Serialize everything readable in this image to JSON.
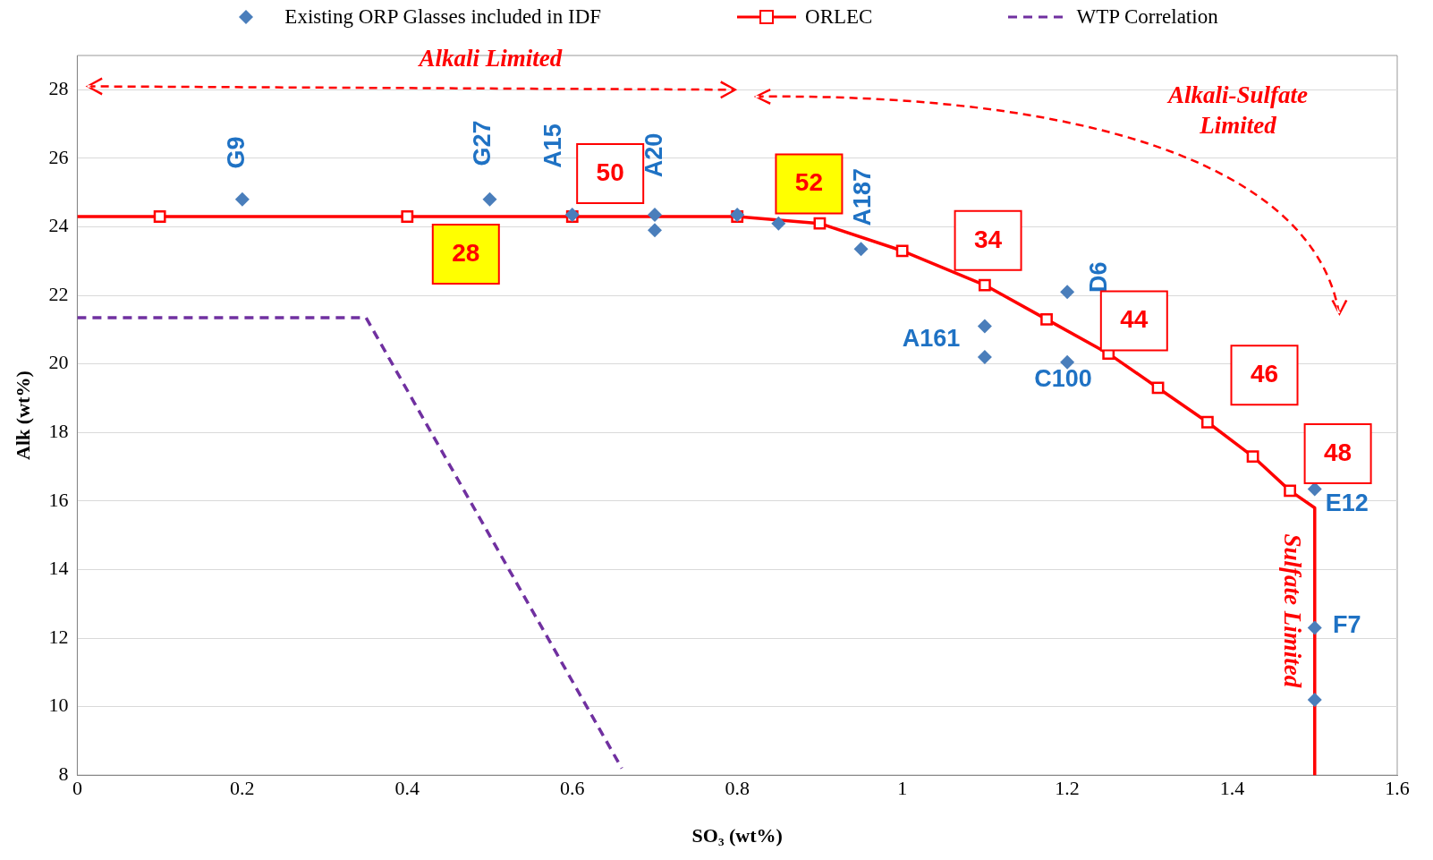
{
  "chart_data": {
    "type": "scatter",
    "xlabel": "SO₃ (wt%)",
    "ylabel": "Alk (wt%)",
    "xlim": [
      0,
      1.6
    ],
    "xticks": [
      0,
      0.2,
      0.4,
      0.6,
      0.8,
      1,
      1.2,
      1.4,
      1.6
    ],
    "ylim": [
      8,
      29
    ],
    "yticks": [
      8,
      10,
      12,
      14,
      16,
      18,
      20,
      22,
      24,
      26,
      28
    ],
    "grid": "y",
    "legend": "top",
    "series": [
      {
        "name": "Existing ORP Glasses included in IDF",
        "type": "scatter",
        "marker": "diamond",
        "color": "#4a7ebb",
        "x": [
          0.2,
          0.5,
          0.6,
          0.7,
          0.7,
          0.8,
          0.85,
          0.95,
          1.1,
          1.1,
          1.2,
          1.2,
          1.5,
          1.5,
          1.5
        ],
        "values": [
          24.8,
          24.8,
          24.35,
          24.35,
          23.9,
          24.35,
          24.1,
          23.35,
          21.1,
          20.2,
          22.1,
          20.05,
          16.35,
          12.3,
          10.2
        ]
      },
      {
        "name": "ORLEC",
        "type": "line",
        "marker": "square",
        "line_style": "solid",
        "color": "#ff0000",
        "x": [
          0.1,
          0.4,
          0.6,
          0.8,
          0.9,
          1.0,
          1.1,
          1.175,
          1.25,
          1.31,
          1.37,
          1.425,
          1.47
        ],
        "values": [
          24.3,
          24.3,
          24.3,
          24.3,
          24.1,
          23.3,
          22.3,
          21.3,
          20.3,
          19.3,
          18.3,
          17.3,
          16.3
        ]
      },
      {
        "type": "line",
        "marker": "none",
        "line_style": "solid",
        "color": "#ff0000",
        "x": [
          0,
          0.1
        ],
        "values": [
          24.3,
          24.3
        ]
      },
      {
        "type": "line",
        "marker": "none",
        "line_style": "solid",
        "color": "#ff0000",
        "x": [
          1.47,
          1.5,
          1.5
        ],
        "values": [
          16.3,
          15.8,
          8
        ]
      },
      {
        "name": "WTP Correlation",
        "type": "line",
        "marker": "none",
        "line_style": "dashed",
        "color": "#7030a0",
        "x": [
          0,
          0.35,
          0.66
        ],
        "values": [
          21.35,
          21.35,
          8.2
        ]
      }
    ],
    "annotations": [
      {
        "text": "G9",
        "x": 0.2,
        "y": 24.8
      },
      {
        "text": "G27",
        "x": 0.5,
        "y": 24.8
      },
      {
        "text": "A15",
        "x": 0.6,
        "y": 24.35
      },
      {
        "text": "A20",
        "x": 0.7,
        "y": 24.35
      },
      {
        "text": "A187",
        "x": 0.95,
        "y": 23.35
      },
      {
        "text": "D6",
        "x": 1.2,
        "y": 22.1
      },
      {
        "text": "A161",
        "x": 1.1,
        "y": 21.1
      },
      {
        "text": "C100",
        "x": 1.2,
        "y": 20.05
      },
      {
        "text": "E12",
        "x": 1.5,
        "y": 16.35
      },
      {
        "text": "F7",
        "x": 1.5,
        "y": 12.3
      },
      "50",
      "52",
      "28",
      "34",
      "44",
      "46",
      "48",
      "Alkali Limited",
      "Alkali-Sulfate\nLimited",
      "Sulfate Limited"
    ]
  }
}
